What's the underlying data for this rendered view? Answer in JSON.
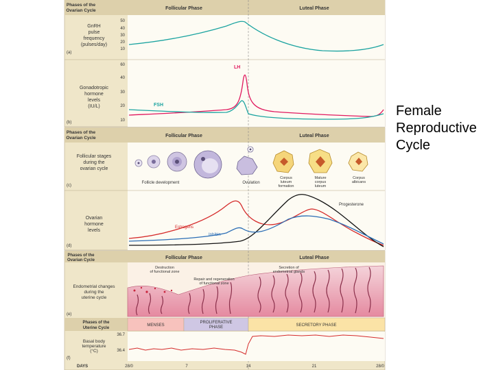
{
  "side_title": [
    "Female",
    "Reproductive",
    "Cycle"
  ],
  "panel_a": {
    "header_left": [
      "Phases of the",
      "Ovarian Cycle"
    ],
    "follicular": "Follicular Phase",
    "luteal": "Luteal Phase",
    "label": [
      "GnRH",
      "pulse",
      "frequency",
      "(pulses/day)"
    ],
    "letter": "(a)",
    "ticks": [
      "50",
      "40",
      "30",
      "20",
      "10"
    ]
  },
  "panel_b": {
    "label": [
      "Gonadotropic",
      "hormone",
      "levels",
      "(IU/L)"
    ],
    "letter": "(b)",
    "ticks": [
      "60",
      "40",
      "30",
      "20",
      "10"
    ],
    "lh": "LH",
    "fsh": "FSH"
  },
  "panel_c": {
    "header_left": [
      "Phases of the",
      "Ovarian Cycle"
    ],
    "follicular": "Follicular Phase",
    "luteal": "Luteal Phase",
    "label": [
      "Follicular stages",
      "during the",
      "ovarian cycle"
    ],
    "letter": "(c)",
    "follicle_dev": "Follicle development",
    "ovulation": "Ovulation",
    "cl_formation": [
      "Corpus",
      "luteum",
      "formation"
    ],
    "mature_cl": [
      "Mature",
      "corpus",
      "luteum"
    ],
    "albicans": [
      "Corpus",
      "albicans"
    ]
  },
  "panel_d": {
    "label": [
      "Ovarian",
      "hormone",
      "levels"
    ],
    "letter": "(d)",
    "progesterone": "Progesterone",
    "estrogens": "Estrogens",
    "inhibin": "Inhibin"
  },
  "panel_e": {
    "header_left": [
      "Phases of the",
      "Ovarian Cycle"
    ],
    "follicular": "Follicular Phase",
    "luteal": "Luteal Phase",
    "destruction": [
      "Destruction",
      "of functional zone"
    ],
    "repair": [
      "Repair and regeneration",
      "of functional zone"
    ],
    "secretion": [
      "Secretion of",
      "endometrial glands"
    ],
    "label": [
      "Endometrial changes",
      "during the",
      "uterine cycle"
    ],
    "letter": "(e)",
    "uterine_header": [
      "Phases of the",
      "Uterine Cycle"
    ],
    "menses": "MENSES",
    "proliferative": [
      "PROLIFERATIVE",
      "PHASE"
    ],
    "secretory": "SECRETORY PHASE"
  },
  "panel_f": {
    "label": [
      "Basal body",
      "temperature",
      "(°C)"
    ],
    "letter": "(f)",
    "tick_hi": "36.7",
    "tick_lo": "36.4",
    "days_label": "DAYS",
    "days": [
      "28/0",
      "7",
      "14",
      "21",
      "28/0"
    ]
  },
  "colors": {
    "header_bg": "#ddd0ab",
    "panel_bg": "#efe6c9",
    "menses": "#f7c2bd",
    "proliferative": "#cfc7e4",
    "secretory": "#fbe3a6",
    "lh": "#e0185e",
    "fsh": "#1aa3a0",
    "estrogen": "#d52a2a",
    "progesterone": "#111111",
    "inhibin": "#2a6db5"
  }
}
